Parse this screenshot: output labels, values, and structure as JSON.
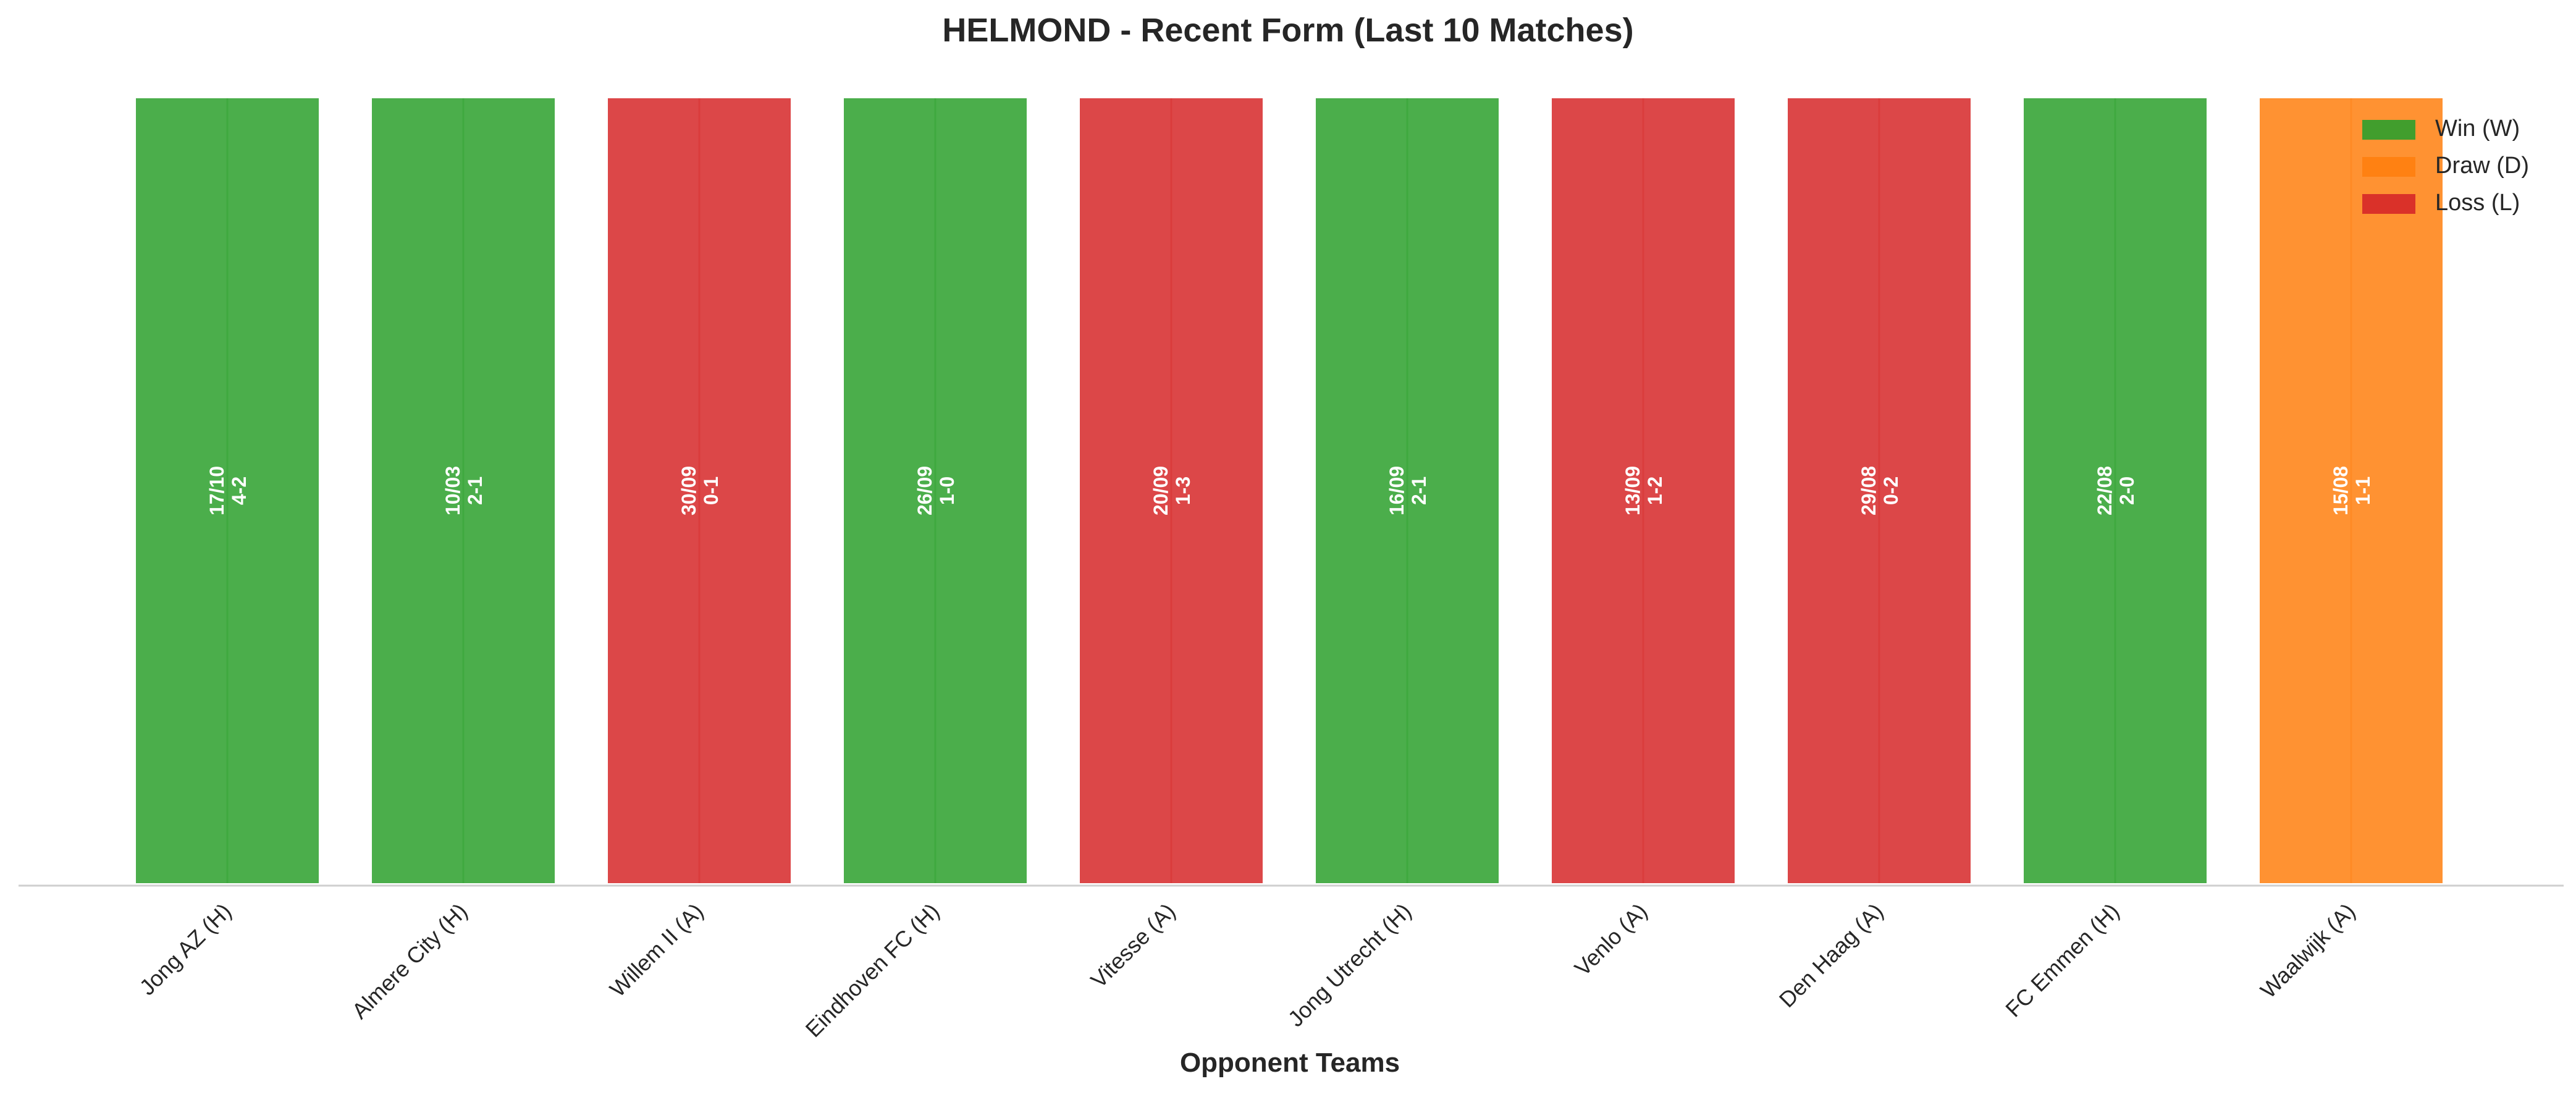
{
  "chart_data": {
    "type": "bar",
    "title": "HELMOND - Recent Form (Last 10 Matches)",
    "xlabel": "Opponent Teams",
    "ylabel": "",
    "categories": [
      "Jong AZ (H)",
      "Almere City (H)",
      "Willem II (A)",
      "Eindhoven FC (H)",
      "Vitesse (A)",
      "Jong Utrecht (H)",
      "Venlo (A)",
      "Den Haag (A)",
      "FC Emmen (H)",
      "Waalwijk (A)"
    ],
    "values": [
      1,
      1,
      1,
      1,
      1,
      1,
      1,
      1,
      1,
      1
    ],
    "results": [
      "W",
      "W",
      "L",
      "W",
      "L",
      "W",
      "L",
      "L",
      "W",
      "D"
    ],
    "dates": [
      "17/10",
      "10/03",
      "30/09",
      "26/09",
      "20/09",
      "16/09",
      "13/09",
      "29/08",
      "22/08",
      "15/08"
    ],
    "scores": [
      "4-2",
      "2-1",
      "0-1",
      "1-0",
      "1-3",
      "2-1",
      "1-2",
      "0-2",
      "2-0",
      "1-1"
    ],
    "ylim": [
      0,
      1
    ],
    "grid": false,
    "legend": {
      "placement": "top-right",
      "entries": [
        {
          "key": "W",
          "label": "Win (W)",
          "color": "#2ca02c"
        },
        {
          "key": "D",
          "label": "Draw (D)",
          "color": "#ff7f0e"
        },
        {
          "key": "L",
          "label": "Loss (L)",
          "color": "#d62728"
        }
      ]
    }
  }
}
